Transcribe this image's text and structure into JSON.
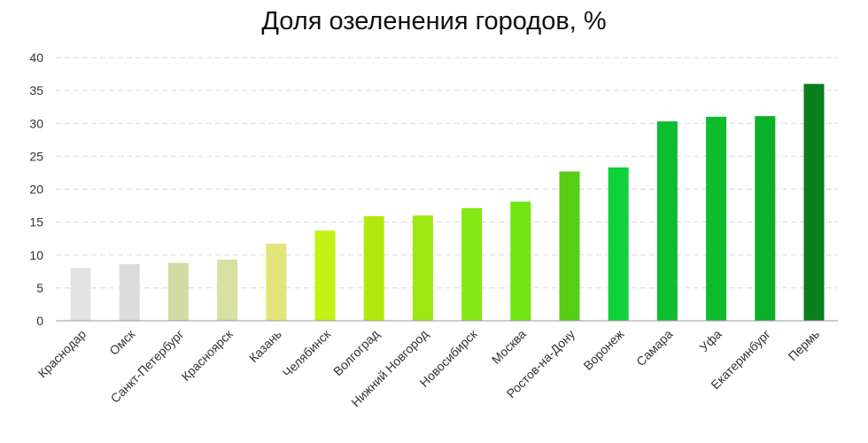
{
  "chart_data": {
    "type": "bar",
    "title": "Доля озеленения городов, %",
    "xlabel": "",
    "ylabel": "",
    "ylim": [
      0,
      40
    ],
    "yticks": [
      0,
      5,
      10,
      15,
      20,
      25,
      30,
      35,
      40
    ],
    "grid": true,
    "legend": "none",
    "categories": [
      "Краснодар",
      "Омск",
      "Санкт-Петербург",
      "Красноярск",
      "Казань",
      "Челябинск",
      "Волгоград",
      "Нижний Новгород",
      "Новосибирск",
      "Москва",
      "Ростов-на-Дону",
      "Воронеж",
      "Самара",
      "Уфа",
      "Екатеринбург",
      "Пермь"
    ],
    "values": [
      8.0,
      8.6,
      8.8,
      9.3,
      11.7,
      13.7,
      15.9,
      16.0,
      17.1,
      18.1,
      22.7,
      23.3,
      30.3,
      31.0,
      31.1,
      36.0
    ],
    "colors": [
      "#e3e3e3",
      "#dcdcdc",
      "#d3dba4",
      "#d8e0a4",
      "#e3e57a",
      "#c4f214",
      "#b3e80d",
      "#9ee813",
      "#84e816",
      "#6fe612",
      "#5acd17",
      "#0ed13b",
      "#0dbf30",
      "#0cbc2e",
      "#0baf28",
      "#087e1c"
    ],
    "grid_color": "#d9d9d9",
    "axis_color": "#9a9a9a"
  }
}
